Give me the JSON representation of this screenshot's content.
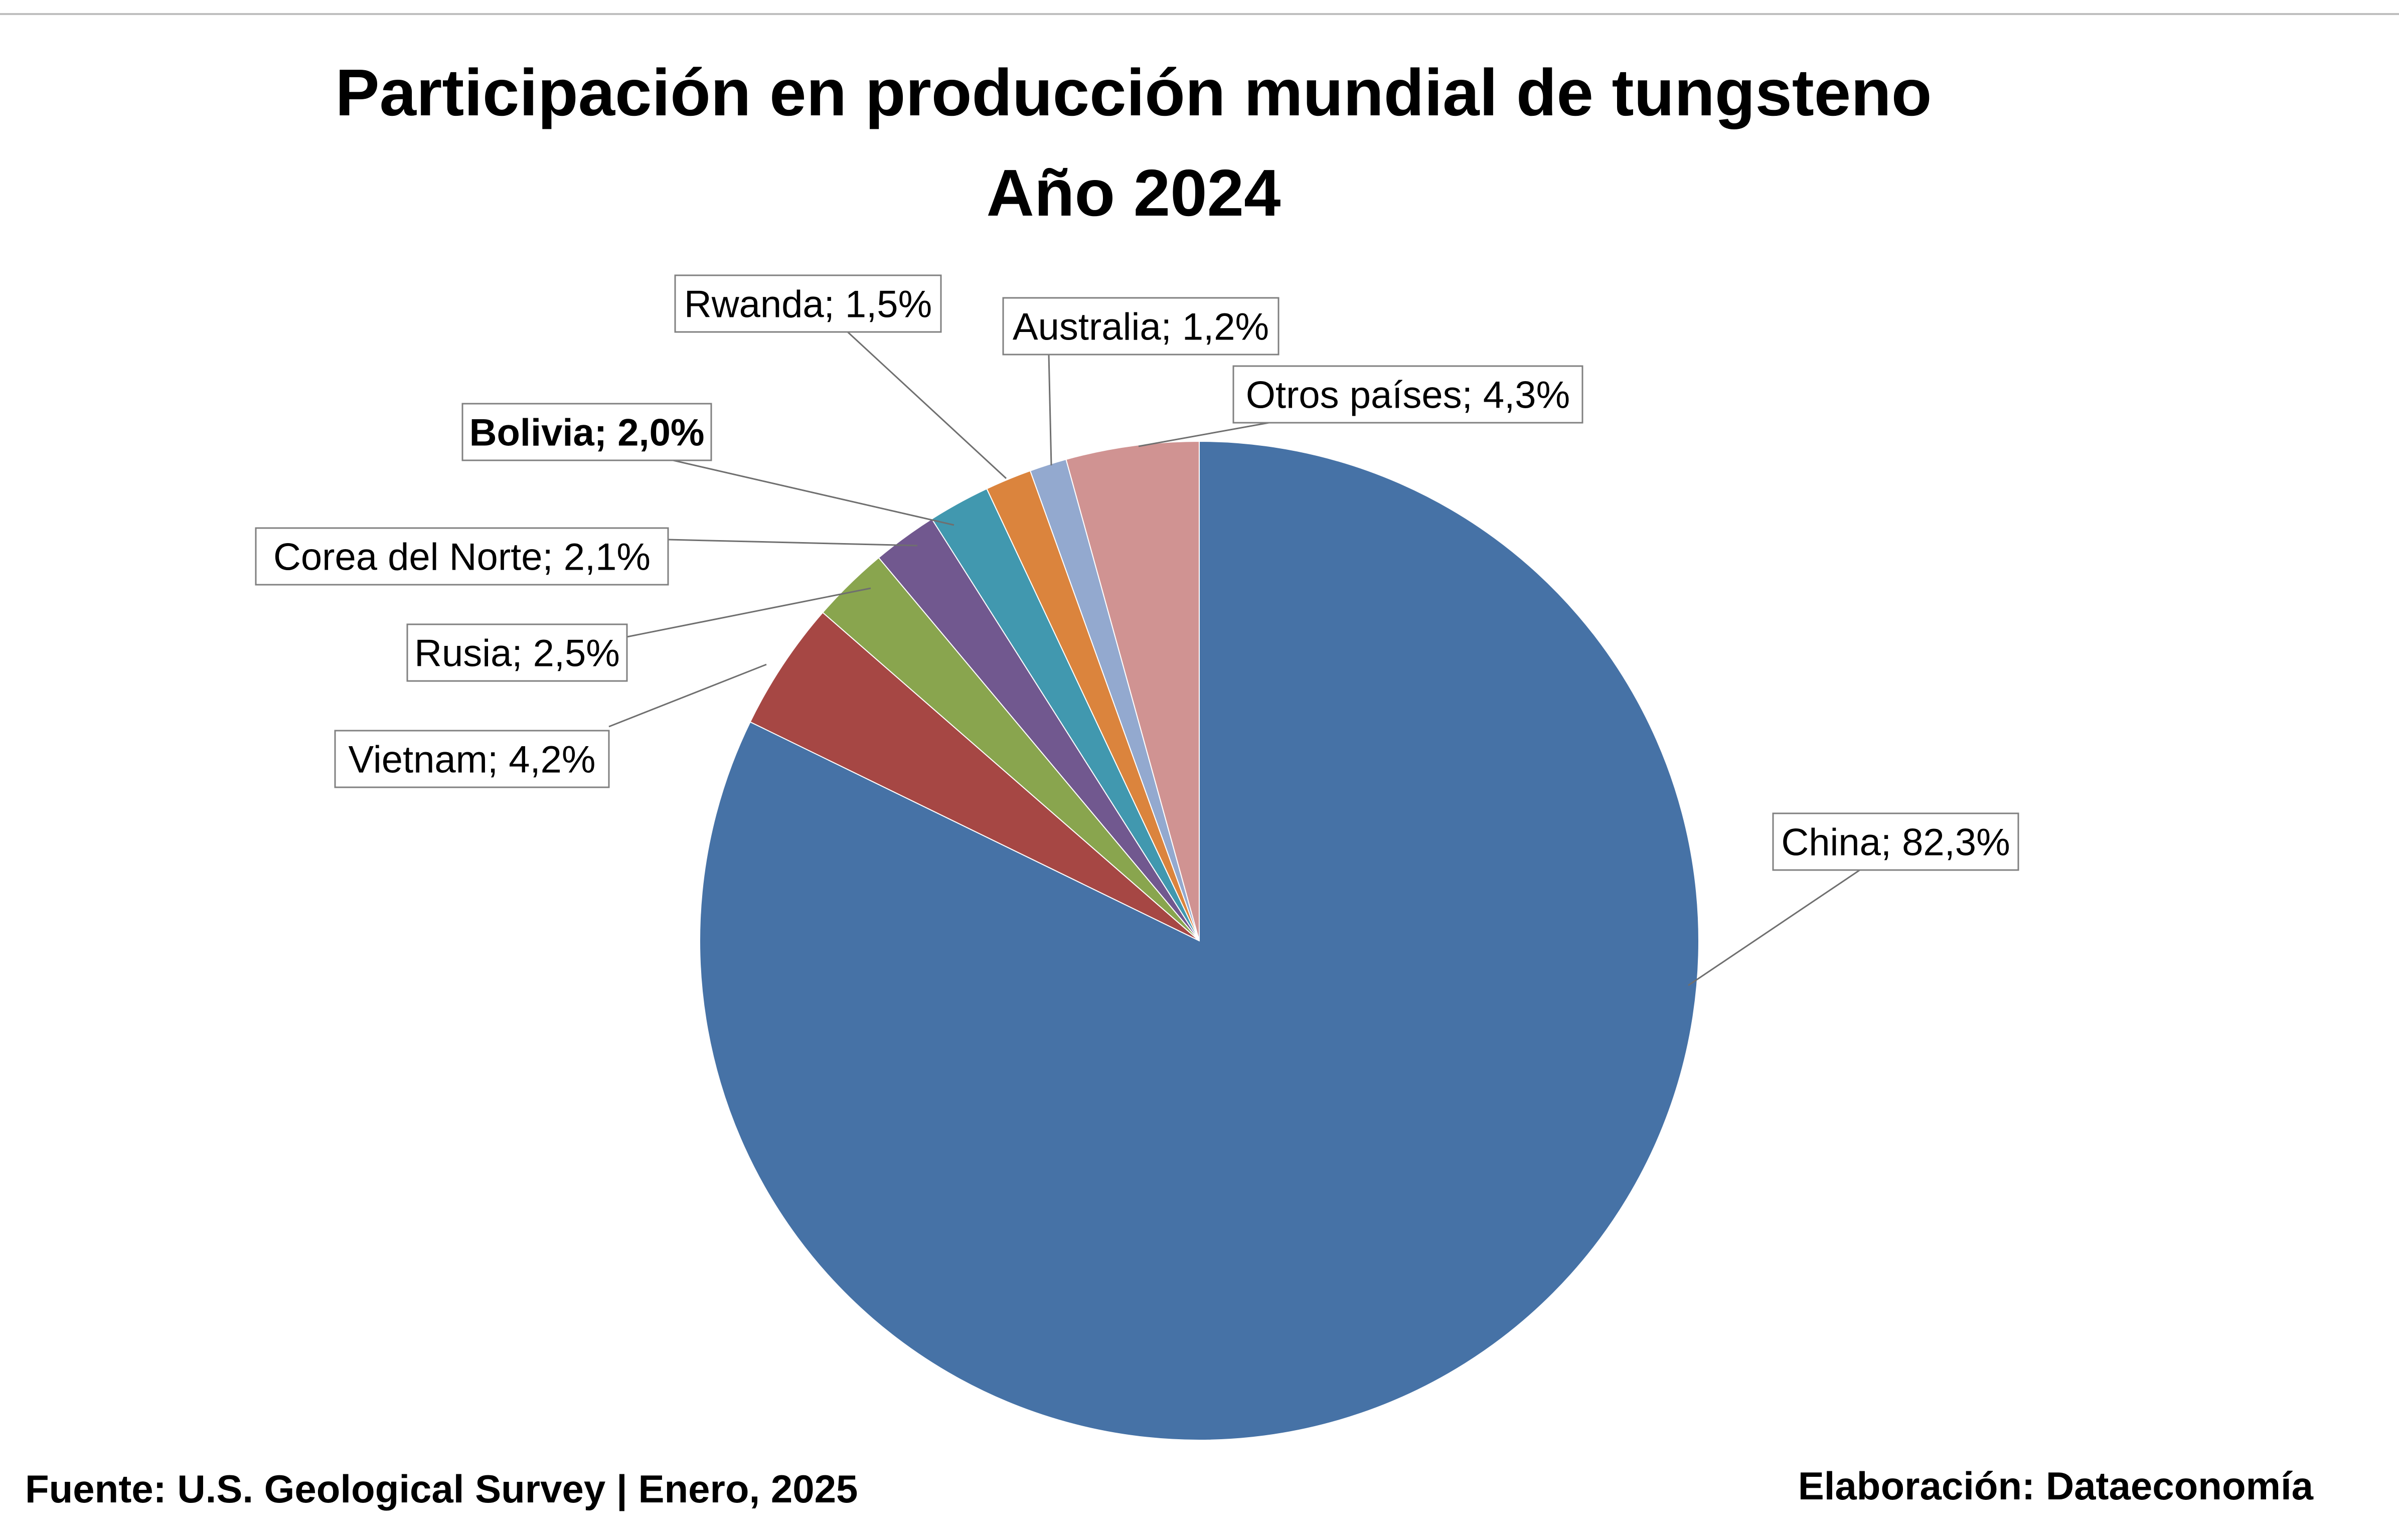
{
  "chart_data": {
    "type": "pie",
    "title": "Participación en producción mundial de tungsteno",
    "subtitle": "Año 2024",
    "slices": [
      {
        "label": "China",
        "value": 82.3,
        "display": "China; 82,3%",
        "color": "#4672A6",
        "bold": false
      },
      {
        "label": "Vietnam",
        "value": 4.2,
        "display": "Vietnam; 4,2%",
        "color": "#A64744",
        "bold": false
      },
      {
        "label": "Rusia",
        "value": 2.5,
        "display": "Rusia; 2,5%",
        "color": "#89A54E",
        "bold": false
      },
      {
        "label": "Corea del Norte",
        "value": 2.1,
        "display": "Corea del Norte; 2,1%",
        "color": "#71588F",
        "bold": false
      },
      {
        "label": "Bolivia",
        "value": 2.0,
        "display": "Bolivia; 2,0%",
        "color": "#4198AF",
        "bold": true
      },
      {
        "label": "Rwanda",
        "value": 1.5,
        "display": "Rwanda; 1,5%",
        "color": "#DB843D",
        "bold": false
      },
      {
        "label": "Australia",
        "value": 1.2,
        "display": "Australia; 1,2%",
        "color": "#93A9CF",
        "bold": false
      },
      {
        "label": "Otros países",
        "value": 4.3,
        "display": "Otros países; 4,3%",
        "color": "#D09392",
        "bold": false
      }
    ],
    "start_angle": "12 o'clock",
    "direction": "clockwise",
    "legend": "none"
  },
  "footer": {
    "source": "Fuente: U.S. Geological Survey | Enero, 2025",
    "credit": "Elaboración: Dataeconomía"
  }
}
